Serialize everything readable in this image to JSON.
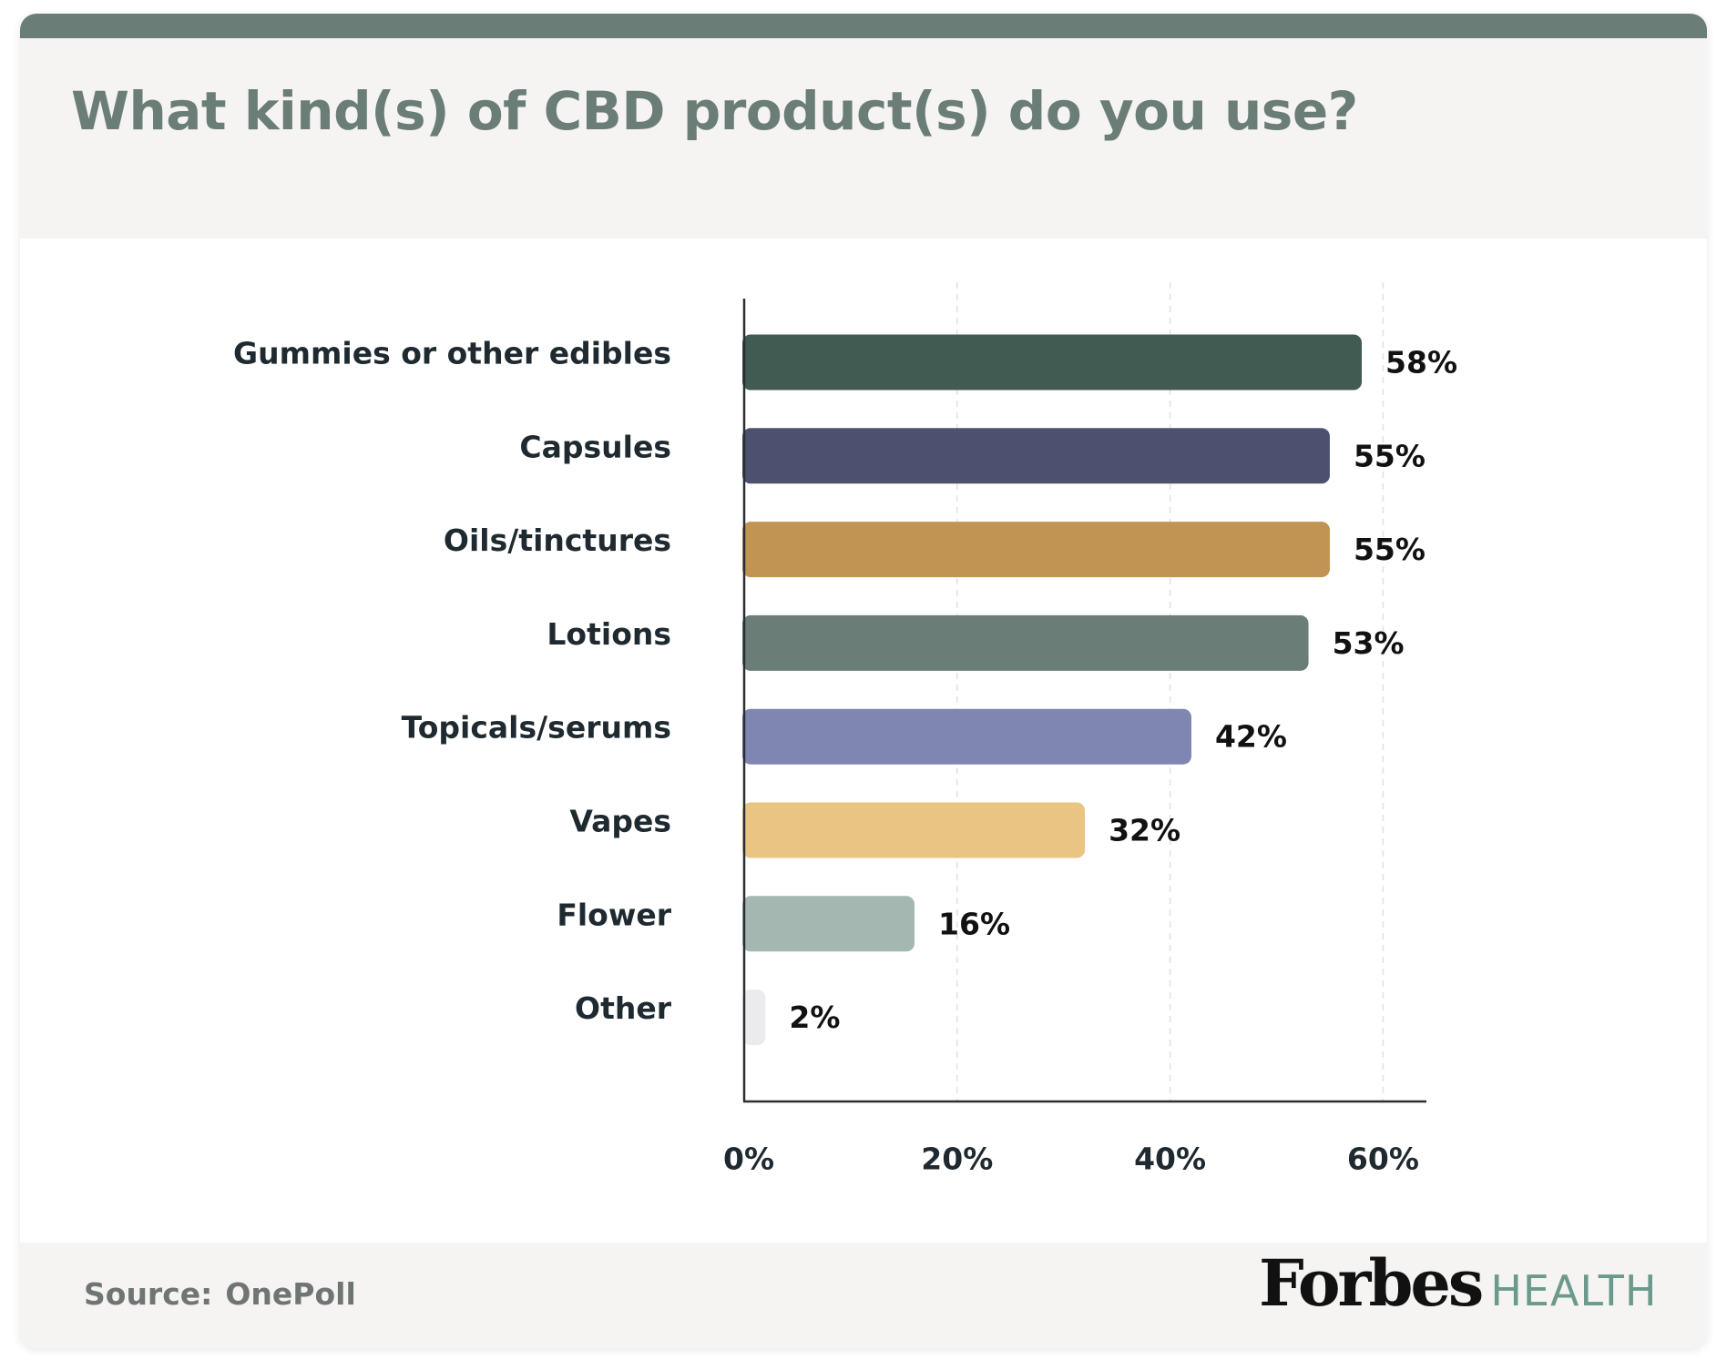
{
  "header": {
    "title": "What kind(s) of CBD product(s) do you use?"
  },
  "footer": {
    "source_label": "Source:",
    "source_name": "OnePoll",
    "logo_text": "Forbes",
    "logo_sub": "HEALTH"
  },
  "colors": {
    "accent": "#6b7d77",
    "header_bg": "#f5f4f2",
    "logo_health": "#6b9a8c"
  },
  "chart_data": {
    "type": "bar",
    "orientation": "horizontal",
    "title": "What kind(s) of CBD product(s) do you use?",
    "categories": [
      "Gummies or other edibles",
      "Capsules",
      "Oils/tinctures",
      "Lotions",
      "Topicals/serums",
      "Vapes",
      "Flower",
      "Other"
    ],
    "values": [
      58,
      55,
      55,
      53,
      42,
      32,
      16,
      2
    ],
    "value_labels": [
      "58%",
      "55%",
      "55%",
      "53%",
      "42%",
      "32%",
      "16%",
      "2%"
    ],
    "colors": [
      "#415b53",
      "#4d5170",
      "#c19453",
      "#6b7d77",
      "#7f86b2",
      "#eac482",
      "#a4b7b1",
      "#ebebee"
    ],
    "x_ticks": [
      0,
      20,
      40,
      60
    ],
    "x_tick_labels": [
      "0%",
      "20%",
      "40%",
      "60%"
    ],
    "xlim": [
      0,
      64
    ],
    "xlabel": "",
    "ylabel": "",
    "grid": true,
    "legend": "none"
  }
}
